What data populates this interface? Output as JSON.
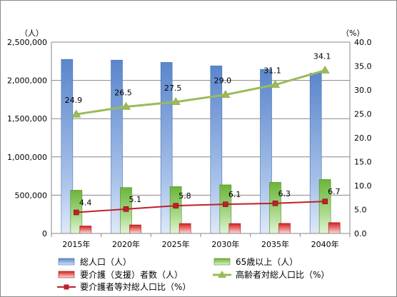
{
  "chart_data": {
    "type": "bar",
    "categories": [
      "2015年",
      "2020年",
      "2025年",
      "2030年",
      "2035年",
      "2040年"
    ],
    "y_left": {
      "unit": "（人）",
      "min": 0,
      "max": 2500000,
      "ticks": [
        "0",
        "500,000",
        "1,000,000",
        "1,500,000",
        "2,000,000",
        "2,500,000"
      ]
    },
    "y_right": {
      "unit": "（%）",
      "min": 0,
      "max": 40,
      "ticks": [
        "0.0",
        "5.0",
        "10.0",
        "15.0",
        "20.0",
        "25.0",
        "30.0",
        "35.0",
        "40.0"
      ]
    },
    "series": [
      {
        "name": "総人口（人）",
        "type": "bar",
        "axis": "left",
        "color": "#6f98d6",
        "values": [
          2275000,
          2265000,
          2235000,
          2190000,
          2145000,
          2095000
        ]
      },
      {
        "name": "65歳以上（人）",
        "type": "bar",
        "axis": "left",
        "color": "#7fc24a",
        "values": [
          565000,
          600000,
          612000,
          635000,
          668000,
          705000
        ]
      },
      {
        "name": "要介護（支援）者数（人）",
        "type": "bar",
        "axis": "left",
        "color": "#e03a3a",
        "values": [
          98000,
          112000,
          130000,
          130000,
          132000,
          142000
        ]
      },
      {
        "name": "高齢者対総人口比（%）",
        "type": "line",
        "axis": "right",
        "color": "#9bbb59",
        "values": [
          24.9,
          26.5,
          27.5,
          29.0,
          31.1,
          34.1
        ],
        "labels": [
          "24.9",
          "26.5",
          "27.5",
          "29.0",
          "31.1",
          "34.1"
        ]
      },
      {
        "name": "要介護者等対総人口比（%）",
        "type": "line",
        "axis": "right",
        "color": "#c0202a",
        "values": [
          4.4,
          5.1,
          5.8,
          6.1,
          6.3,
          6.7
        ],
        "labels": [
          "4.4",
          "5.1",
          "5.8",
          "6.1",
          "6.3",
          "6.7"
        ]
      }
    ],
    "grid": true,
    "legend_position": "bottom"
  }
}
